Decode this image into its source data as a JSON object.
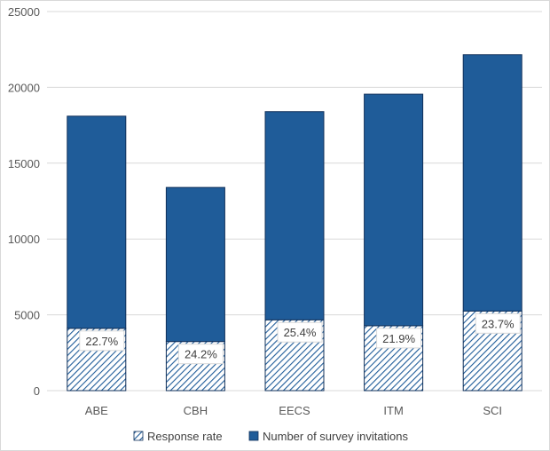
{
  "chart_data": {
    "type": "bar",
    "stacked": true,
    "categories": [
      "ABE",
      "CBH",
      "EECS",
      "ITM",
      "SCI"
    ],
    "totals": [
      18100,
      13400,
      18400,
      19550,
      22150
    ],
    "series": [
      {
        "name": "Response rate",
        "values": [
          4110,
          3240,
          4670,
          4280,
          5250
        ],
        "data_labels": [
          "22.7%",
          "24.2%",
          "25.4%",
          "21.9%",
          "23.7%"
        ],
        "fill": "hatched"
      },
      {
        "name": "Number of survey invitations",
        "values": [
          13990,
          10160,
          13730,
          15270,
          16900
        ],
        "fill": "solid"
      }
    ],
    "ylim": [
      0,
      25000
    ],
    "yticks": [
      "0",
      "5000",
      "10000",
      "15000",
      "20000",
      "25000"
    ],
    "ytick_values": [
      0,
      5000,
      10000,
      15000,
      20000,
      25000
    ],
    "grid": true,
    "legend_position": "bottom",
    "colors": {
      "bar": "#1f5c99",
      "outline": "#10305a",
      "grid": "#d9d9d9",
      "hatch": "#1f5c99"
    }
  }
}
